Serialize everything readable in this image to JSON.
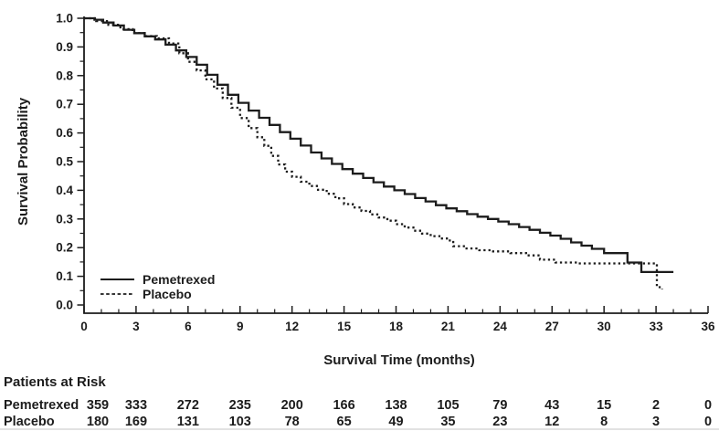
{
  "colors": {
    "ink": "#1c1c1c",
    "background": "#ffffff",
    "bottom_rule": "#c6c6c6"
  },
  "chart_data": {
    "type": "line",
    "subtype": "kaplan-meier-step",
    "title": "",
    "xlabel": "Survival Time (months)",
    "ylabel": "Survival Probability",
    "xlim": [
      0,
      36
    ],
    "ylim": [
      0.0,
      1.0
    ],
    "x_ticks": [
      0,
      3,
      6,
      9,
      12,
      15,
      18,
      21,
      24,
      27,
      30,
      33,
      36
    ],
    "y_ticks": [
      0.0,
      0.1,
      0.2,
      0.3,
      0.4,
      0.5,
      0.6,
      0.7,
      0.8,
      0.9,
      1.0
    ],
    "x_minor_step": 1,
    "y_minor_step": 0.05,
    "grid": false,
    "legend_position": "lower-left",
    "series": [
      {
        "name": "Pemetrexed",
        "line_style": "solid",
        "color": "#1c1c1c",
        "points": [
          [
            0,
            1.0
          ],
          [
            0.6,
            0.995
          ],
          [
            1.1,
            0.985
          ],
          [
            1.7,
            0.975
          ],
          [
            2.3,
            0.96
          ],
          [
            2.9,
            0.948
          ],
          [
            3.5,
            0.937
          ],
          [
            4.1,
            0.926
          ],
          [
            4.7,
            0.908
          ],
          [
            5.3,
            0.888
          ],
          [
            5.9,
            0.865
          ],
          [
            6.5,
            0.838
          ],
          [
            7.1,
            0.803
          ],
          [
            7.7,
            0.768
          ],
          [
            8.3,
            0.733
          ],
          [
            8.9,
            0.705
          ],
          [
            9.5,
            0.678
          ],
          [
            10.1,
            0.653
          ],
          [
            10.7,
            0.628
          ],
          [
            11.3,
            0.603
          ],
          [
            11.9,
            0.58
          ],
          [
            12.5,
            0.556
          ],
          [
            13.1,
            0.532
          ],
          [
            13.7,
            0.511
          ],
          [
            14.3,
            0.492
          ],
          [
            14.9,
            0.474
          ],
          [
            15.5,
            0.458
          ],
          [
            16.1,
            0.443
          ],
          [
            16.7,
            0.428
          ],
          [
            17.3,
            0.413
          ],
          [
            17.9,
            0.4
          ],
          [
            18.5,
            0.387
          ],
          [
            19.1,
            0.373
          ],
          [
            19.7,
            0.361
          ],
          [
            20.3,
            0.348
          ],
          [
            20.9,
            0.337
          ],
          [
            21.5,
            0.327
          ],
          [
            22.1,
            0.317
          ],
          [
            22.7,
            0.308
          ],
          [
            23.3,
            0.3
          ],
          [
            23.9,
            0.291
          ],
          [
            24.5,
            0.282
          ],
          [
            25.1,
            0.272
          ],
          [
            25.7,
            0.262
          ],
          [
            26.3,
            0.252
          ],
          [
            26.9,
            0.242
          ],
          [
            27.5,
            0.231
          ],
          [
            28.1,
            0.218
          ],
          [
            28.7,
            0.207
          ],
          [
            29.3,
            0.196
          ],
          [
            30,
            0.181
          ],
          [
            31.35,
            0.148
          ],
          [
            32.15,
            0.115
          ],
          [
            34,
            0.115
          ]
        ]
      },
      {
        "name": "Placebo",
        "line_style": "dotted",
        "color": "#1c1c1c",
        "points": [
          [
            0,
            1.0
          ],
          [
            0.7,
            0.99
          ],
          [
            1.4,
            0.977
          ],
          [
            2.1,
            0.962
          ],
          [
            2.8,
            0.948
          ],
          [
            3.5,
            0.938
          ],
          [
            4.2,
            0.93
          ],
          [
            4.9,
            0.912
          ],
          [
            5.5,
            0.878
          ],
          [
            6,
            0.848
          ],
          [
            6.5,
            0.818
          ],
          [
            7,
            0.787
          ],
          [
            7.5,
            0.755
          ],
          [
            8,
            0.722
          ],
          [
            8.5,
            0.688
          ],
          [
            9,
            0.652
          ],
          [
            9.5,
            0.617
          ],
          [
            10,
            0.585
          ],
          [
            10.4,
            0.555
          ],
          [
            10.8,
            0.52
          ],
          [
            11.2,
            0.49
          ],
          [
            11.6,
            0.465
          ],
          [
            12,
            0.447
          ],
          [
            12.5,
            0.43
          ],
          [
            13,
            0.415
          ],
          [
            13.5,
            0.402
          ],
          [
            14,
            0.388
          ],
          [
            14.5,
            0.372
          ],
          [
            15,
            0.352
          ],
          [
            15.5,
            0.34
          ],
          [
            16,
            0.328
          ],
          [
            16.5,
            0.316
          ],
          [
            17,
            0.305
          ],
          [
            17.5,
            0.294
          ],
          [
            18,
            0.282
          ],
          [
            18.5,
            0.27
          ],
          [
            19,
            0.259
          ],
          [
            19.5,
            0.249
          ],
          [
            20,
            0.24
          ],
          [
            20.5,
            0.232
          ],
          [
            21,
            0.225
          ],
          [
            21.3,
            0.205
          ],
          [
            22,
            0.197
          ],
          [
            22.8,
            0.191
          ],
          [
            23.6,
            0.187
          ],
          [
            24.6,
            0.181
          ],
          [
            25.5,
            0.173
          ],
          [
            26.3,
            0.158
          ],
          [
            27.2,
            0.148
          ],
          [
            28.5,
            0.145
          ],
          [
            33.0,
            0.145
          ],
          [
            33.05,
            0.062
          ],
          [
            33.35,
            0.055
          ]
        ]
      }
    ],
    "legend": [
      {
        "label": "Pemetrexed",
        "style": "solid"
      },
      {
        "label": "Placebo",
        "style": "dotted"
      }
    ],
    "at_risk": {
      "title": "Patients at Risk",
      "time_points": [
        0,
        3,
        6,
        9,
        12,
        15,
        18,
        21,
        24,
        27,
        30,
        33,
        36
      ],
      "rows": [
        {
          "label": "Pemetrexed",
          "counts": [
            359,
            333,
            272,
            235,
            200,
            166,
            138,
            105,
            79,
            43,
            15,
            2,
            0
          ]
        },
        {
          "label": "Placebo",
          "counts": [
            180,
            169,
            131,
            103,
            78,
            65,
            49,
            35,
            23,
            12,
            8,
            3,
            0
          ]
        }
      ]
    }
  }
}
